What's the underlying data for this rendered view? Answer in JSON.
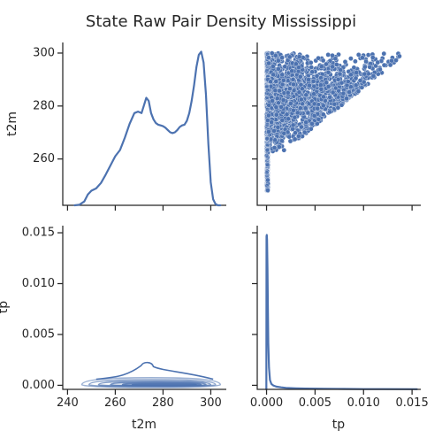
{
  "chart_data": {
    "type": "scatter",
    "subtype": "pairplot",
    "title": "State Raw Pair Density Mississippi",
    "variables": [
      "t2m",
      "tp"
    ],
    "color": "#4c72b0",
    "grid": false,
    "axes": {
      "t2m": {
        "range": [
          242.5,
          304.0
        ],
        "ticks": [
          240,
          260,
          280,
          300
        ],
        "tick_labels": [
          "240",
          "260",
          "280",
          "300"
        ]
      },
      "tp": {
        "range": [
          -0.0004,
          0.0157
        ],
        "ticks": [
          0.0,
          0.005,
          0.01,
          0.015
        ],
        "tick_labels": [
          "0.000",
          "0.005",
          "0.010",
          "0.015"
        ]
      },
      "t2m_x": {
        "range": [
          238.0,
          306.5
        ],
        "ticks": [
          240,
          260,
          280,
          300
        ],
        "tick_labels": [
          "240",
          "260",
          "280",
          "300"
        ]
      },
      "tp_x": {
        "range": [
          -0.00096,
          0.0159
        ],
        "ticks": [
          0.0,
          0.005,
          0.01,
          0.015
        ],
        "tick_labels": [
          "0.000",
          "0.005",
          "0.010",
          "0.015"
        ]
      }
    },
    "diag_t2m_kde": {
      "x": [
        243.0,
        245.0,
        247.0,
        248.5,
        250.0,
        252.0,
        254.0,
        256.0,
        258.0,
        260.0,
        262.0,
        264.0,
        266.0,
        268.0,
        269.5,
        271.0,
        272.0,
        273.0,
        274.0,
        275.0,
        276.0,
        277.0,
        278.0,
        279.0,
        280.0,
        281.0,
        282.0,
        283.0,
        284.0,
        285.0,
        286.0,
        287.0,
        288.0,
        289.0,
        290.0,
        291.0,
        292.0,
        293.0,
        294.0,
        295.0,
        296.0,
        297.0,
        298.0,
        299.0,
        300.0,
        301.0,
        302.0,
        303.0,
        304.0
      ],
      "y": [
        0.0,
        0.004,
        0.025,
        0.07,
        0.095,
        0.11,
        0.145,
        0.2,
        0.26,
        0.32,
        0.36,
        0.44,
        0.53,
        0.6,
        0.61,
        0.6,
        0.65,
        0.7,
        0.68,
        0.6,
        0.56,
        0.535,
        0.525,
        0.52,
        0.515,
        0.505,
        0.49,
        0.475,
        0.47,
        0.475,
        0.49,
        0.51,
        0.52,
        0.525,
        0.55,
        0.6,
        0.68,
        0.78,
        0.9,
        0.98,
        1.0,
        0.93,
        0.72,
        0.4,
        0.15,
        0.04,
        0.008,
        0.0,
        0.0
      ],
      "ymax": 1.06
    },
    "diag_tp_kde": {
      "x": [
        0.0,
        2e-05,
        5e-05,
        0.0001,
        0.00013,
        0.00018,
        0.00025,
        0.00035,
        0.0005,
        0.0007,
        0.001,
        0.0015,
        0.002,
        0.003,
        0.004,
        0.006,
        0.008,
        0.01,
        0.012,
        0.0155
      ],
      "y": [
        0.99,
        1.0,
        0.97,
        0.78,
        0.55,
        0.3,
        0.14,
        0.06,
        0.035,
        0.025,
        0.018,
        0.013,
        0.01,
        0.007,
        0.005,
        0.004,
        0.003,
        0.002,
        0.0015,
        0.001
      ],
      "ymax": 1.06
    },
    "scatter_tp_vs_t2m": {
      "n_points": 2600,
      "tp_range": [
        0.0,
        0.015
      ],
      "t2m_range": [
        246.0,
        301.0
      ]
    },
    "kde2d_t2m_tp": {
      "levels": 6,
      "peak": {
        "t2m": 273.0,
        "tp": 0.0021
      }
    }
  }
}
